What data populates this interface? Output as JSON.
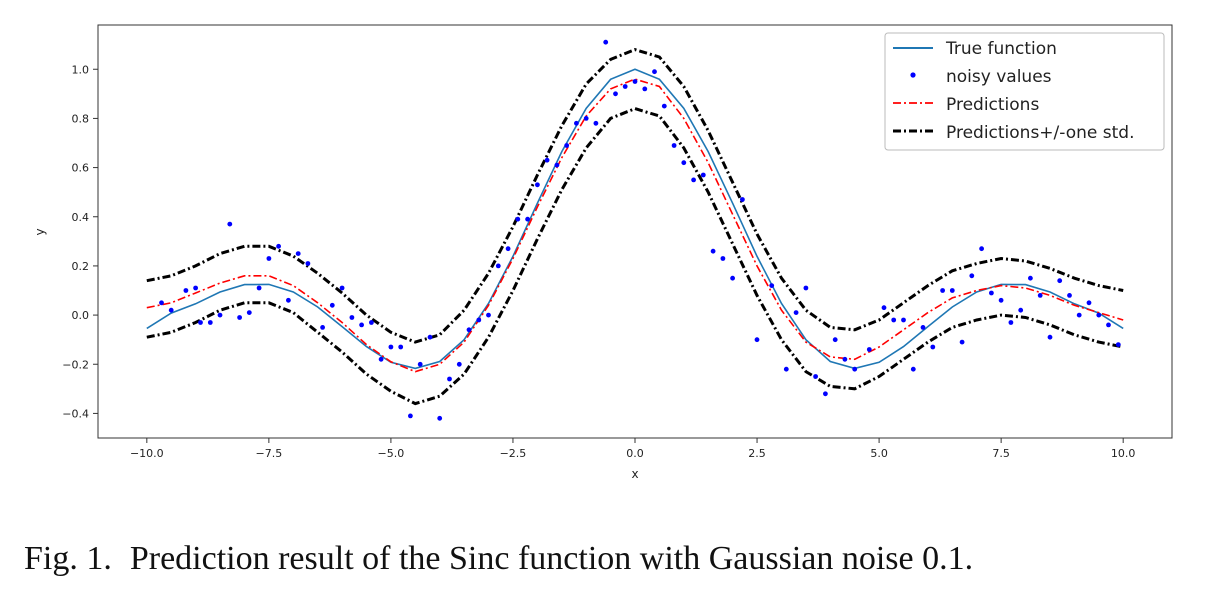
{
  "chart_data": {
    "type": "line",
    "xlabel": "x",
    "ylabel": "y",
    "xlim": [
      -11.0,
      11.0
    ],
    "ylim": [
      -0.5,
      1.18
    ],
    "xticks": [
      -10.0,
      -7.5,
      -5.0,
      -2.5,
      0.0,
      2.5,
      5.0,
      7.5,
      10.0
    ],
    "xtick_labels": [
      "−10.0",
      "−7.5",
      "−5.0",
      "−2.5",
      "0.0",
      "2.5",
      "5.0",
      "7.5",
      "10.0"
    ],
    "yticks": [
      -0.4,
      -0.2,
      0.0,
      0.2,
      0.4,
      0.6,
      0.8,
      1.0
    ],
    "ytick_labels": [
      "−0.4",
      "−0.2",
      "0.0",
      "0.2",
      "0.4",
      "0.6",
      "0.8",
      "1.0"
    ],
    "grid": false,
    "legend_position": "top-right",
    "series": [
      {
        "name": "True function",
        "style": "solid",
        "color": "#1f77b4",
        "x": [
          -10.0,
          -9.5,
          -9.0,
          -8.5,
          -8.0,
          -7.5,
          -7.0,
          -6.5,
          -6.0,
          -5.5,
          -5.0,
          -4.5,
          -4.0,
          -3.5,
          -3.0,
          -2.5,
          -2.0,
          -1.5,
          -1.0,
          -0.5,
          0.0,
          0.5,
          1.0,
          1.5,
          2.0,
          2.5,
          3.0,
          3.5,
          4.0,
          4.5,
          5.0,
          5.5,
          6.0,
          6.5,
          7.0,
          7.5,
          8.0,
          8.5,
          9.0,
          9.5,
          10.0
        ],
        "y": [
          -0.054,
          0.008,
          0.046,
          0.094,
          0.124,
          0.125,
          0.094,
          0.033,
          -0.047,
          -0.128,
          -0.192,
          -0.217,
          -0.189,
          -0.1,
          0.047,
          0.239,
          0.455,
          0.665,
          0.841,
          0.959,
          1.0,
          0.959,
          0.841,
          0.665,
          0.455,
          0.239,
          0.047,
          -0.1,
          -0.189,
          -0.217,
          -0.192,
          -0.128,
          -0.047,
          0.033,
          0.094,
          0.125,
          0.124,
          0.094,
          0.046,
          0.008,
          -0.054
        ]
      },
      {
        "name": "Predictions",
        "style": "dash-dot",
        "color": "#ff0000",
        "x": [
          -10.0,
          -9.5,
          -9.0,
          -8.5,
          -8.0,
          -7.5,
          -7.0,
          -6.5,
          -6.0,
          -5.5,
          -5.0,
          -4.5,
          -4.0,
          -3.5,
          -3.0,
          -2.5,
          -2.0,
          -1.5,
          -1.0,
          -0.5,
          0.0,
          0.5,
          1.0,
          1.5,
          2.0,
          2.5,
          3.0,
          3.5,
          4.0,
          4.5,
          5.0,
          5.5,
          6.0,
          6.5,
          7.0,
          7.5,
          8.0,
          8.5,
          9.0,
          9.5,
          10.0
        ],
        "y": [
          0.03,
          0.05,
          0.09,
          0.13,
          0.16,
          0.16,
          0.12,
          0.05,
          -0.03,
          -0.12,
          -0.19,
          -0.23,
          -0.2,
          -0.11,
          0.04,
          0.23,
          0.44,
          0.64,
          0.81,
          0.92,
          0.96,
          0.93,
          0.8,
          0.62,
          0.41,
          0.2,
          0.02,
          -0.11,
          -0.17,
          -0.18,
          -0.13,
          -0.06,
          0.01,
          0.07,
          0.1,
          0.12,
          0.11,
          0.08,
          0.04,
          0.01,
          -0.02
        ]
      },
      {
        "name": "Predictions+/-one std.",
        "style": "dash-dot",
        "color": "#000000",
        "x": [
          -10.0,
          -9.5,
          -9.0,
          -8.5,
          -8.0,
          -7.5,
          -7.0,
          -6.5,
          -6.0,
          -5.5,
          -5.0,
          -4.5,
          -4.0,
          -3.5,
          -3.0,
          -2.5,
          -2.0,
          -1.5,
          -1.0,
          -0.5,
          0.0,
          0.5,
          1.0,
          1.5,
          2.0,
          2.5,
          3.0,
          3.5,
          4.0,
          4.5,
          5.0,
          5.5,
          6.0,
          6.5,
          7.0,
          7.5,
          8.0,
          8.5,
          9.0,
          9.5,
          10.0
        ],
        "y_upper": [
          0.14,
          0.16,
          0.2,
          0.25,
          0.28,
          0.28,
          0.24,
          0.17,
          0.09,
          0.0,
          -0.07,
          -0.11,
          -0.08,
          0.02,
          0.17,
          0.36,
          0.57,
          0.77,
          0.94,
          1.04,
          1.08,
          1.05,
          0.93,
          0.75,
          0.54,
          0.33,
          0.15,
          0.02,
          -0.05,
          -0.06,
          -0.02,
          0.05,
          0.12,
          0.18,
          0.21,
          0.23,
          0.22,
          0.19,
          0.15,
          0.12,
          0.1
        ],
        "y_lower": [
          -0.09,
          -0.07,
          -0.03,
          0.02,
          0.05,
          0.05,
          0.01,
          -0.07,
          -0.15,
          -0.24,
          -0.31,
          -0.36,
          -0.33,
          -0.24,
          -0.09,
          0.1,
          0.31,
          0.51,
          0.68,
          0.8,
          0.84,
          0.81,
          0.68,
          0.5,
          0.29,
          0.08,
          -0.1,
          -0.23,
          -0.29,
          -0.3,
          -0.25,
          -0.18,
          -0.11,
          -0.05,
          -0.02,
          0.0,
          -0.01,
          -0.04,
          -0.08,
          -0.11,
          -0.13
        ]
      }
    ],
    "points": {
      "name": "noisy values",
      "color": "#0000ff",
      "x": [
        -9.7,
        -9.5,
        -9.2,
        -9.0,
        -8.9,
        -8.7,
        -8.5,
        -8.3,
        -8.1,
        -7.9,
        -7.7,
        -7.5,
        -7.3,
        -7.1,
        -6.9,
        -6.7,
        -6.4,
        -6.2,
        -6.0,
        -5.8,
        -5.6,
        -5.4,
        -5.2,
        -5.0,
        -4.8,
        -4.6,
        -4.4,
        -4.2,
        -4.0,
        -3.8,
        -3.6,
        -3.4,
        -3.2,
        -3.0,
        -2.8,
        -2.6,
        -2.4,
        -2.2,
        -2.0,
        -1.8,
        -1.6,
        -1.4,
        -1.2,
        -1.0,
        -0.8,
        -0.6,
        -0.4,
        -0.2,
        0.0,
        0.2,
        0.4,
        0.6,
        0.8,
        1.0,
        1.2,
        1.4,
        1.6,
        1.8,
        2.0,
        2.2,
        2.5,
        2.8,
        3.1,
        3.3,
        3.5,
        3.7,
        3.9,
        4.1,
        4.3,
        4.5,
        4.8,
        5.1,
        5.3,
        5.5,
        5.7,
        5.9,
        6.1,
        6.3,
        6.5,
        6.7,
        6.9,
        7.1,
        7.3,
        7.5,
        7.7,
        7.9,
        8.1,
        8.3,
        8.5,
        8.7,
        8.9,
        9.1,
        9.3,
        9.5,
        9.7,
        9.9
      ],
      "y": [
        0.05,
        0.02,
        0.1,
        0.11,
        -0.03,
        -0.03,
        0.0,
        0.37,
        -0.01,
        0.01,
        0.11,
        0.23,
        0.28,
        0.06,
        0.25,
        0.21,
        -0.05,
        0.04,
        0.11,
        -0.01,
        -0.04,
        -0.03,
        -0.18,
        -0.13,
        -0.13,
        -0.41,
        -0.2,
        -0.09,
        -0.42,
        -0.26,
        -0.2,
        -0.06,
        -0.02,
        0.0,
        0.2,
        0.27,
        0.39,
        0.39,
        0.53,
        0.63,
        0.61,
        0.69,
        0.78,
        0.8,
        0.78,
        1.11,
        0.9,
        0.93,
        0.95,
        0.92,
        0.99,
        0.85,
        0.69,
        0.62,
        0.55,
        0.57,
        0.26,
        0.23,
        0.15,
        0.47,
        -0.1,
        0.12,
        -0.22,
        0.01,
        0.11,
        -0.25,
        -0.32,
        -0.1,
        -0.18,
        -0.22,
        -0.14,
        0.03,
        -0.02,
        -0.02,
        -0.22,
        -0.05,
        -0.13,
        0.1,
        0.1,
        -0.11,
        0.16,
        0.27,
        0.09,
        0.06,
        -0.03,
        0.02,
        0.15,
        0.08,
        -0.09,
        0.14,
        0.08,
        0.0,
        0.05,
        0.0,
        -0.04,
        -0.12
      ]
    }
  },
  "legend": {
    "true_function": "True function",
    "noisy_values": "noisy values",
    "predictions": "Predictions",
    "predictions_std": "Predictions+/-one std."
  },
  "caption": {
    "label": "Fig. 1.",
    "text": "Prediction result of the Sinc function with Gaussian noise 0.1."
  }
}
